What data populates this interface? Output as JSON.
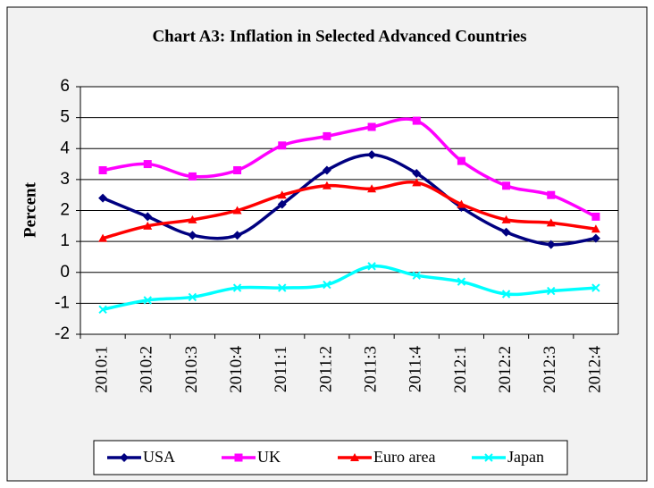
{
  "chart_data": {
    "type": "line",
    "title": "Chart A3: Inflation in Selected Advanced Countries",
    "y_label": "Percent",
    "categories": [
      "2010:1",
      "2010:2",
      "2010:3",
      "2010:4",
      "2011:1",
      "2011:2",
      "2011:3",
      "2011:4",
      "2012:1",
      "2012:2",
      "2012:3",
      "2012:4"
    ],
    "series": [
      {
        "name": "USA",
        "color": "#000080",
        "marker": "diamond",
        "values": [
          2.4,
          1.8,
          1.2,
          1.2,
          2.2,
          3.3,
          3.8,
          3.2,
          2.1,
          1.3,
          0.9,
          1.1
        ]
      },
      {
        "name": "UK",
        "color": "#ff00ff",
        "marker": "square",
        "values": [
          3.3,
          3.5,
          3.1,
          3.3,
          4.1,
          4.4,
          4.7,
          4.9,
          3.6,
          2.8,
          2.5,
          1.8
        ]
      },
      {
        "name": "Euro area",
        "color": "#ff0000",
        "marker": "triangle",
        "values": [
          1.1,
          1.5,
          1.7,
          2.0,
          2.5,
          2.8,
          2.7,
          2.9,
          2.2,
          1.7,
          1.6,
          1.4
        ]
      },
      {
        "name": "Japan",
        "color": "#00ffff",
        "marker": "x",
        "values": [
          -1.2,
          -0.9,
          -0.8,
          -0.5,
          -0.5,
          -0.4,
          0.2,
          -0.1,
          -0.3,
          -0.7,
          -0.6,
          -0.5
        ]
      }
    ],
    "ylim": [
      -2,
      6
    ],
    "yticks": [
      -2,
      -1,
      0,
      1,
      2,
      3,
      4,
      5,
      6
    ],
    "grid": true,
    "legend": "bottom"
  }
}
